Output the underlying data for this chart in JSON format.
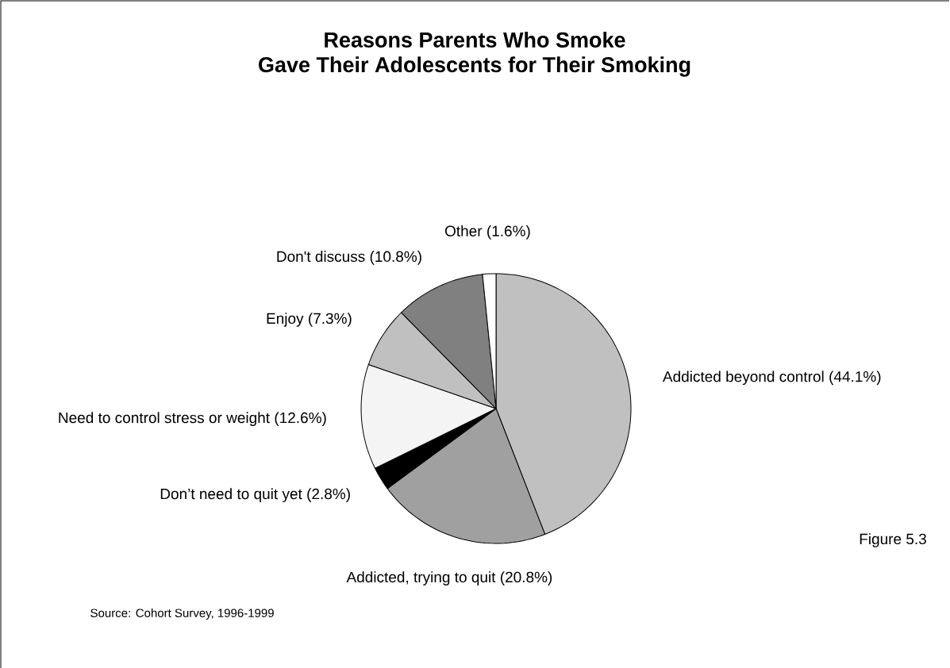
{
  "chart_data": {
    "type": "pie",
    "title": "Reasons Parents Who Smoke",
    "subtitle": "Gave Their Adolescents for Their Smoking",
    "categories": [
      "Addicted beyond control",
      "Addicted, trying to quit",
      "Don’t need to quit yet",
      "Need to control stress or weight",
      "Enjoy",
      "Don't discuss",
      "Other"
    ],
    "values": [
      44.1,
      20.8,
      2.8,
      12.6,
      7.3,
      10.8,
      1.6
    ],
    "value_labels": [
      "(44.1%)",
      "(20.8%)",
      "(2.8%)",
      "(12.6%)",
      "(7.3%)",
      "(10.8%)",
      "(1.6%)"
    ],
    "colors": [
      "#c0c0c0",
      "#a0a0a0",
      "#000000",
      "#f4f4f4",
      "#c0c0c0",
      "#808080",
      "#ffffff"
    ],
    "annotations": [
      "Figure 5.3",
      "Source:  Cohort Survey, 1996-1999"
    ]
  }
}
